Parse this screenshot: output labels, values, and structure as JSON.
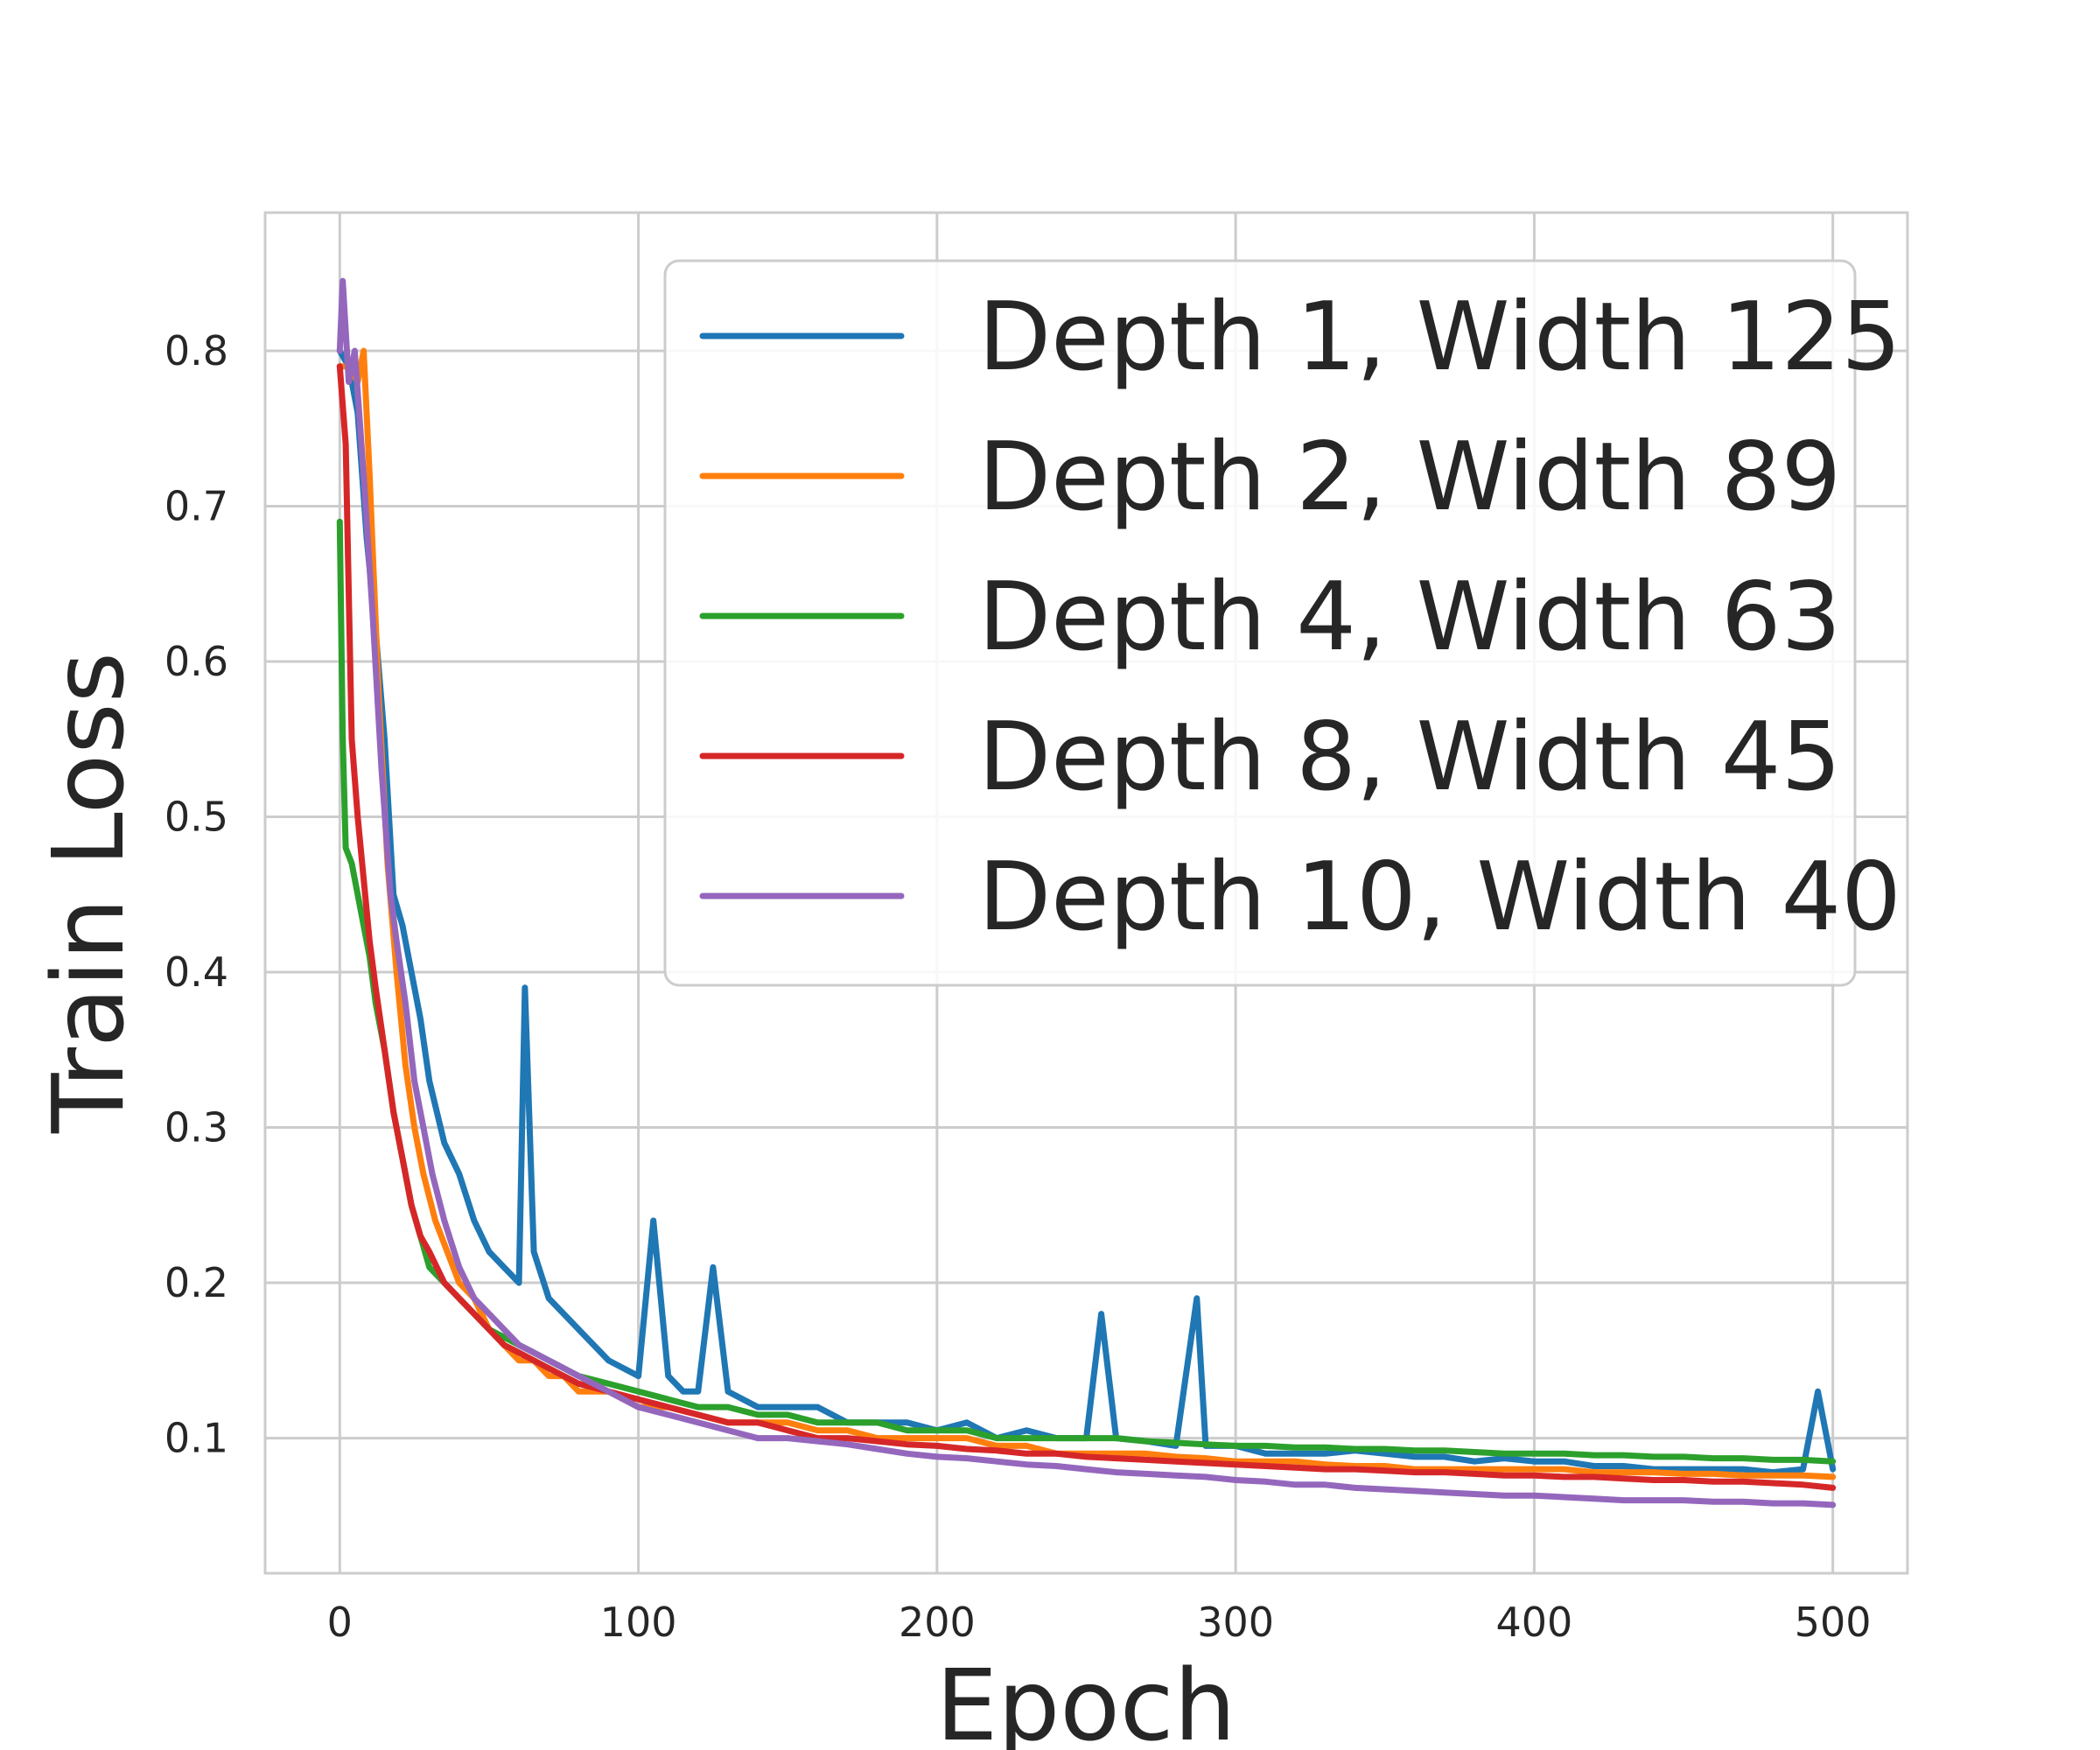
{
  "chart_data": {
    "type": "line",
    "xlabel": "Epoch",
    "ylabel": "Train Loss",
    "xlim": [
      -25,
      525
    ],
    "ylim": [
      0.013,
      0.889
    ],
    "xticks": [
      0,
      100,
      200,
      300,
      400,
      500
    ],
    "yticks": [
      0.1,
      0.2,
      0.3,
      0.4,
      0.5,
      0.6,
      0.7,
      0.8
    ],
    "grid": true,
    "legend_position": "top-right",
    "legend_entries": [
      "Depth 1, Width 125",
      "Depth 2, Width 89",
      "Depth 4, Width 63",
      "Depth 8, Width 45",
      "Depth 10, Width 40"
    ],
    "series": [
      {
        "name": "Depth 1, Width 125",
        "color": "#1f77b4",
        "x": [
          0,
          3,
          6,
          9,
          12,
          15,
          18,
          21,
          24,
          27,
          30,
          35,
          40,
          45,
          50,
          55,
          60,
          62,
          65,
          70,
          75,
          80,
          85,
          90,
          100,
          105,
          110,
          115,
          120,
          125,
          130,
          140,
          150,
          160,
          170,
          180,
          190,
          200,
          210,
          220,
          230,
          240,
          250,
          255,
          260,
          270,
          280,
          287,
          290,
          300,
          310,
          320,
          330,
          340,
          350,
          360,
          370,
          380,
          390,
          400,
          410,
          420,
          430,
          440,
          450,
          460,
          470,
          480,
          490,
          495,
          500
        ],
        "values": [
          0.8,
          0.79,
          0.76,
          0.68,
          0.62,
          0.55,
          0.45,
          0.43,
          0.4,
          0.37,
          0.33,
          0.29,
          0.27,
          0.24,
          0.22,
          0.21,
          0.2,
          0.39,
          0.22,
          0.19,
          0.18,
          0.17,
          0.16,
          0.15,
          0.14,
          0.24,
          0.14,
          0.13,
          0.13,
          0.21,
          0.13,
          0.12,
          0.12,
          0.12,
          0.11,
          0.11,
          0.11,
          0.105,
          0.11,
          0.1,
          0.105,
          0.1,
          0.1,
          0.18,
          0.1,
          0.098,
          0.095,
          0.19,
          0.095,
          0.095,
          0.09,
          0.09,
          0.09,
          0.092,
          0.09,
          0.088,
          0.088,
          0.085,
          0.087,
          0.085,
          0.085,
          0.082,
          0.082,
          0.08,
          0.08,
          0.08,
          0.08,
          0.078,
          0.08,
          0.13,
          0.08
        ]
      },
      {
        "name": "Depth 2, Width 89",
        "color": "#ff7f0e",
        "x": [
          0,
          3,
          6,
          8,
          10,
          13,
          16,
          19,
          22,
          25,
          28,
          32,
          36,
          40,
          45,
          50,
          55,
          60,
          65,
          70,
          75,
          80,
          90,
          100,
          110,
          120,
          130,
          140,
          150,
          160,
          170,
          180,
          190,
          200,
          210,
          220,
          230,
          240,
          250,
          260,
          270,
          280,
          290,
          300,
          310,
          320,
          330,
          340,
          350,
          360,
          370,
          380,
          390,
          400,
          410,
          420,
          430,
          440,
          450,
          460,
          470,
          480,
          490,
          500
        ],
        "values": [
          0.79,
          0.79,
          0.78,
          0.8,
          0.72,
          0.58,
          0.47,
          0.4,
          0.34,
          0.3,
          0.27,
          0.24,
          0.22,
          0.2,
          0.19,
          0.17,
          0.16,
          0.15,
          0.15,
          0.14,
          0.14,
          0.13,
          0.13,
          0.12,
          0.12,
          0.115,
          0.11,
          0.11,
          0.11,
          0.105,
          0.105,
          0.1,
          0.1,
          0.1,
          0.1,
          0.095,
          0.095,
          0.09,
          0.09,
          0.09,
          0.09,
          0.088,
          0.087,
          0.085,
          0.085,
          0.085,
          0.083,
          0.082,
          0.082,
          0.08,
          0.08,
          0.08,
          0.08,
          0.08,
          0.08,
          0.078,
          0.078,
          0.078,
          0.077,
          0.077,
          0.076,
          0.076,
          0.076,
          0.075
        ]
      },
      {
        "name": "Depth 4, Width 63",
        "color": "#2ca02c",
        "x": [
          0,
          1,
          2,
          4,
          6,
          8,
          10,
          12,
          15,
          18,
          21,
          24,
          27,
          30,
          35,
          40,
          45,
          50,
          55,
          60,
          65,
          70,
          75,
          80,
          90,
          100,
          110,
          120,
          130,
          140,
          150,
          160,
          170,
          180,
          190,
          200,
          210,
          220,
          230,
          240,
          250,
          260,
          270,
          280,
          290,
          300,
          310,
          320,
          330,
          340,
          350,
          360,
          370,
          380,
          390,
          400,
          410,
          420,
          430,
          440,
          450,
          460,
          470,
          480,
          490,
          500
        ],
        "values": [
          0.69,
          0.55,
          0.48,
          0.47,
          0.45,
          0.43,
          0.41,
          0.38,
          0.35,
          0.31,
          0.28,
          0.25,
          0.23,
          0.21,
          0.2,
          0.19,
          0.18,
          0.17,
          0.165,
          0.16,
          0.155,
          0.15,
          0.145,
          0.14,
          0.135,
          0.13,
          0.125,
          0.12,
          0.12,
          0.115,
          0.115,
          0.11,
          0.11,
          0.11,
          0.105,
          0.105,
          0.105,
          0.1,
          0.1,
          0.1,
          0.1,
          0.1,
          0.098,
          0.097,
          0.096,
          0.095,
          0.095,
          0.094,
          0.094,
          0.093,
          0.093,
          0.092,
          0.092,
          0.091,
          0.09,
          0.09,
          0.09,
          0.089,
          0.089,
          0.088,
          0.088,
          0.087,
          0.087,
          0.086,
          0.086,
          0.085
        ]
      },
      {
        "name": "Depth 8, Width 45",
        "color": "#d62728",
        "x": [
          0,
          2,
          4,
          6,
          8,
          10,
          12,
          15,
          18,
          21,
          24,
          27,
          30,
          35,
          40,
          45,
          50,
          55,
          60,
          65,
          70,
          75,
          80,
          90,
          100,
          110,
          120,
          130,
          140,
          150,
          160,
          170,
          180,
          190,
          200,
          210,
          220,
          230,
          240,
          250,
          260,
          270,
          280,
          290,
          300,
          310,
          320,
          330,
          340,
          350,
          360,
          370,
          380,
          390,
          400,
          410,
          420,
          430,
          440,
          450,
          460,
          470,
          480,
          490,
          500
        ],
        "values": [
          0.79,
          0.74,
          0.55,
          0.5,
          0.46,
          0.42,
          0.39,
          0.35,
          0.31,
          0.28,
          0.25,
          0.23,
          0.22,
          0.2,
          0.19,
          0.18,
          0.17,
          0.16,
          0.155,
          0.15,
          0.145,
          0.14,
          0.135,
          0.13,
          0.125,
          0.12,
          0.115,
          0.11,
          0.11,
          0.105,
          0.1,
          0.1,
          0.098,
          0.096,
          0.095,
          0.093,
          0.092,
          0.09,
          0.09,
          0.088,
          0.087,
          0.086,
          0.085,
          0.084,
          0.083,
          0.082,
          0.081,
          0.08,
          0.08,
          0.079,
          0.078,
          0.078,
          0.077,
          0.076,
          0.076,
          0.075,
          0.075,
          0.074,
          0.073,
          0.073,
          0.072,
          0.072,
          0.071,
          0.07,
          0.068
        ]
      },
      {
        "name": "Depth 10, Width 40",
        "color": "#9467bd",
        "x": [
          0,
          1,
          3,
          5,
          8,
          11,
          14,
          17,
          19,
          22,
          25,
          28,
          31,
          35,
          40,
          45,
          50,
          55,
          60,
          65,
          70,
          75,
          80,
          90,
          100,
          110,
          120,
          130,
          140,
          150,
          160,
          170,
          180,
          190,
          200,
          210,
          220,
          230,
          240,
          250,
          260,
          270,
          280,
          290,
          300,
          310,
          320,
          330,
          340,
          350,
          360,
          370,
          380,
          390,
          400,
          410,
          420,
          430,
          440,
          450,
          460,
          470,
          480,
          490,
          500
        ],
        "values": [
          0.8,
          0.845,
          0.78,
          0.8,
          0.72,
          0.63,
          0.53,
          0.45,
          0.42,
          0.38,
          0.33,
          0.3,
          0.27,
          0.24,
          0.21,
          0.19,
          0.18,
          0.17,
          0.16,
          0.155,
          0.15,
          0.145,
          0.14,
          0.13,
          0.12,
          0.115,
          0.11,
          0.105,
          0.1,
          0.1,
          0.098,
          0.096,
          0.093,
          0.09,
          0.088,
          0.087,
          0.085,
          0.083,
          0.082,
          0.08,
          0.078,
          0.077,
          0.076,
          0.075,
          0.073,
          0.072,
          0.07,
          0.07,
          0.068,
          0.067,
          0.066,
          0.065,
          0.064,
          0.063,
          0.063,
          0.062,
          0.061,
          0.06,
          0.06,
          0.06,
          0.059,
          0.059,
          0.058,
          0.058,
          0.057
        ]
      }
    ]
  }
}
